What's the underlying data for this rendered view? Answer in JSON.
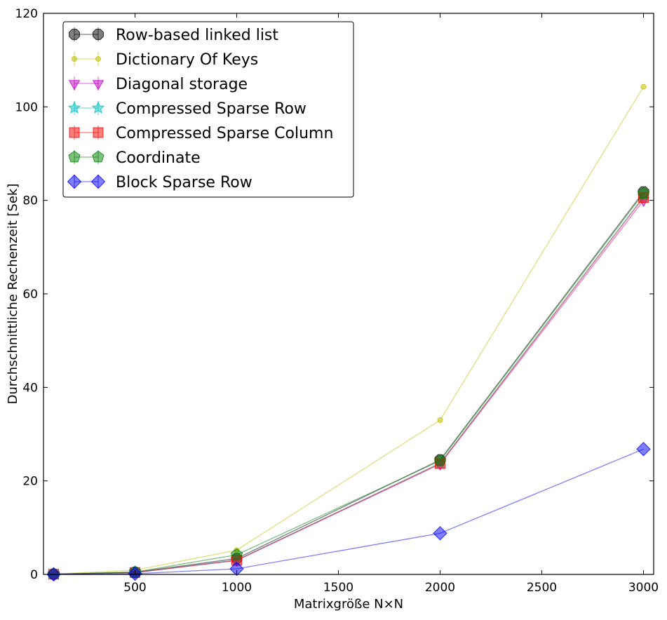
{
  "chart_data": {
    "type": "line",
    "title": "",
    "xlabel": "Matrixgröße N×N",
    "ylabel": "Durchschnittliche Rechenzeit [Sek]",
    "xlim": [
      50,
      3050
    ],
    "ylim": [
      0,
      120
    ],
    "x_ticks": [
      500,
      1000,
      1500,
      2000,
      2500,
      3000
    ],
    "y_ticks": [
      0,
      20,
      40,
      60,
      80,
      100,
      120
    ],
    "x_tick_labels": [
      "500",
      "1000",
      "1500",
      "2000",
      "2500",
      "3000"
    ],
    "y_tick_labels": [
      "0",
      "20",
      "40",
      "60",
      "80",
      "100",
      "120"
    ],
    "x": [
      100,
      500,
      1000,
      2000,
      3000
    ],
    "grid": false,
    "legend_position": "top-left",
    "series": [
      {
        "name": "Row-based linked list",
        "values": [
          0.05,
          0.45,
          3.4,
          24.5,
          81.8
        ],
        "color": "#000000",
        "marker": "octagon"
      },
      {
        "name": "Dictionary Of Keys",
        "values": [
          0.08,
          0.9,
          5.2,
          33.0,
          104.3
        ],
        "color": "#bfbf00",
        "marker": "circle"
      },
      {
        "name": "Diagonal storage",
        "values": [
          0.05,
          0.4,
          3.0,
          23.6,
          80.0
        ],
        "color": "#bf00bf",
        "marker": "triangle-down"
      },
      {
        "name": "Compressed Sparse Row",
        "values": [
          0.05,
          0.4,
          3.1,
          23.8,
          80.8
        ],
        "color": "#00bfbf",
        "marker": "star"
      },
      {
        "name": "Compressed Sparse Column",
        "values": [
          0.05,
          0.4,
          3.0,
          23.7,
          80.6
        ],
        "color": "#ff0000",
        "marker": "square"
      },
      {
        "name": "Coordinate",
        "values": [
          0.06,
          0.5,
          4.2,
          24.3,
          81.5
        ],
        "color": "#008000",
        "marker": "pentagon"
      },
      {
        "name": "Block Sparse Row",
        "values": [
          0.02,
          0.15,
          1.2,
          8.8,
          26.8
        ],
        "color": "#0000ff",
        "marker": "diamond"
      }
    ]
  }
}
